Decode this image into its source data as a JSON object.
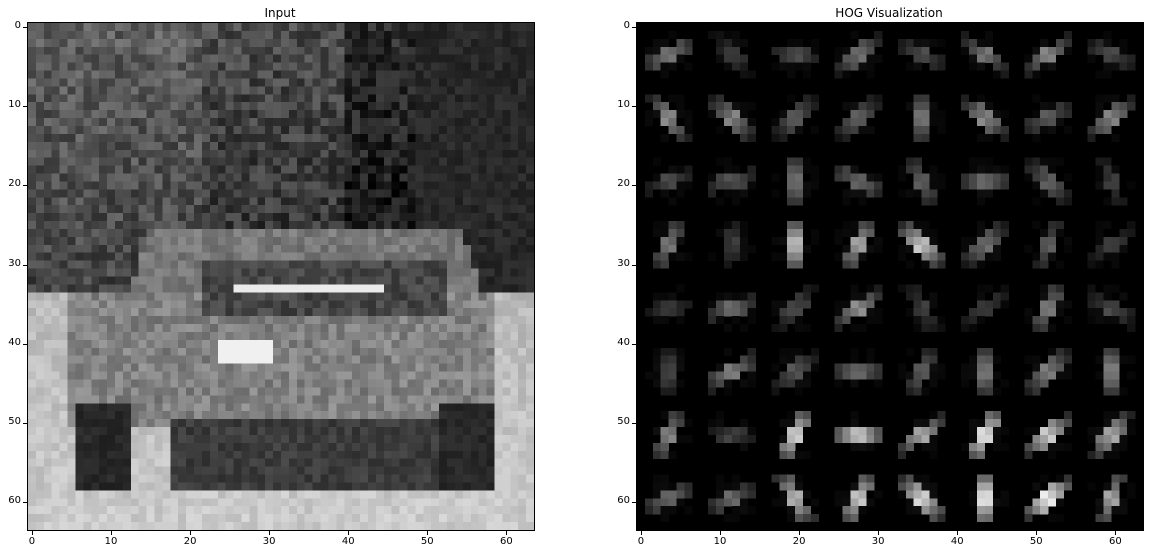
{
  "figure": {
    "panels": [
      {
        "id": "input",
        "title": "Input",
        "x_ticks": [
          "0",
          "10",
          "20",
          "30",
          "40",
          "50",
          "60"
        ],
        "y_ticks": [
          "0",
          "10",
          "20",
          "30",
          "40",
          "50",
          "60"
        ],
        "image_kind": "grayscale-car"
      },
      {
        "id": "hog",
        "title": "HOG Visualization",
        "x_ticks": [
          "0",
          "10",
          "20",
          "30",
          "40",
          "50",
          "60"
        ],
        "y_ticks": [
          "0",
          "10",
          "20",
          "30",
          "40",
          "50",
          "60"
        ],
        "image_kind": "hog-cells"
      }
    ],
    "axis_range": [
      0,
      64
    ],
    "colors": {
      "background": "#ffffff",
      "hog_background": "#000000"
    }
  }
}
